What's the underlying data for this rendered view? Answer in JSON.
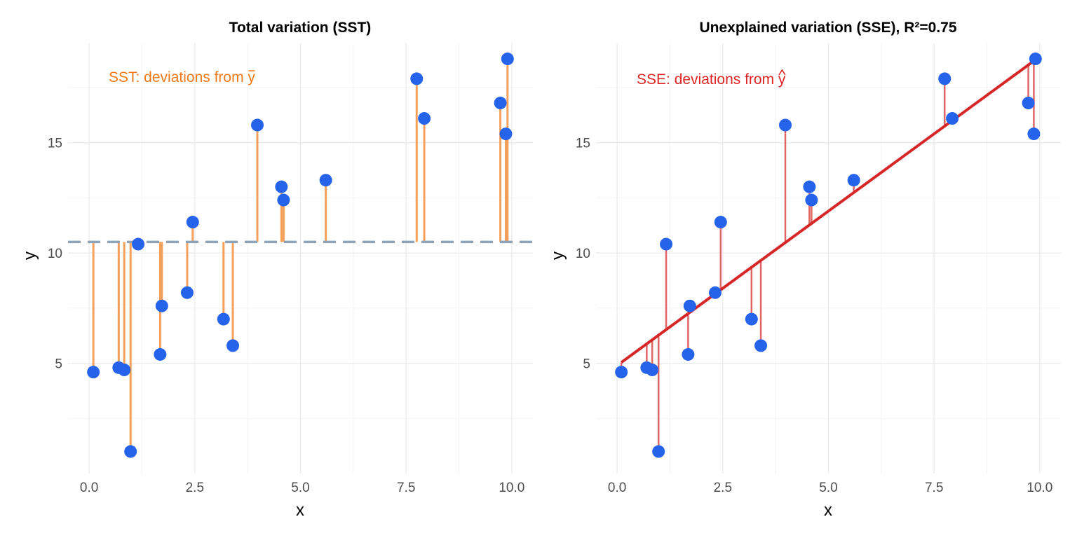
{
  "colors": {
    "point": "#2563eb",
    "sst_segment": "#f5a05a",
    "sst_text": "#f07a1a",
    "mean_line": "#8ea2b8",
    "sse_segment": "#e06666",
    "sse_text": "#dc2626",
    "fit_line": "#d62728"
  },
  "chart_data": [
    {
      "type": "scatter",
      "title": "Total variation (SST)",
      "xlabel": "x",
      "ylabel": "y",
      "xlim": [
        -0.5,
        10.5
      ],
      "ylim": [
        0.0,
        19.5
      ],
      "xticks": [
        "0.0",
        "2.5",
        "5.0",
        "7.5",
        "10.0"
      ],
      "yticks": [
        "5",
        "10",
        "15"
      ],
      "annotation": "SST: deviations from ",
      "annotation_symbol": "y",
      "mean_y": 10.5,
      "x": [
        0.1,
        0.7,
        0.83,
        0.98,
        1.16,
        1.68,
        1.72,
        2.32,
        2.45,
        3.18,
        3.4,
        3.98,
        4.55,
        4.6,
        5.6,
        7.75,
        7.93,
        9.73,
        9.86,
        9.9
      ],
      "y": [
        4.6,
        4.8,
        4.7,
        1.0,
        10.4,
        5.4,
        7.6,
        8.2,
        11.4,
        7.0,
        5.8,
        15.8,
        13.0,
        12.4,
        13.3,
        17.9,
        16.1,
        16.8,
        15.4,
        18.8
      ]
    },
    {
      "type": "scatter",
      "title": "Unexplained variation (SSE), R²=0.75",
      "xlabel": "x",
      "ylabel": "y",
      "xlim": [
        -0.5,
        10.5
      ],
      "ylim": [
        0.0,
        19.5
      ],
      "xticks": [
        "0.0",
        "2.5",
        "5.0",
        "7.5",
        "10.0"
      ],
      "yticks": [
        "5",
        "10",
        "15"
      ],
      "annotation": "SSE: deviations from ",
      "annotation_symbol": "y",
      "fit": {
        "intercept": 4.9,
        "slope": 1.4
      },
      "x": [
        0.1,
        0.7,
        0.83,
        0.98,
        1.16,
        1.68,
        1.72,
        2.32,
        2.45,
        3.18,
        3.4,
        3.98,
        4.55,
        4.6,
        5.6,
        7.75,
        7.93,
        9.73,
        9.86,
        9.9
      ],
      "y": [
        4.6,
        4.8,
        4.7,
        1.0,
        10.4,
        5.4,
        7.6,
        8.2,
        11.4,
        7.0,
        5.8,
        15.8,
        13.0,
        12.4,
        13.3,
        17.9,
        16.1,
        16.8,
        15.4,
        18.8
      ]
    }
  ]
}
